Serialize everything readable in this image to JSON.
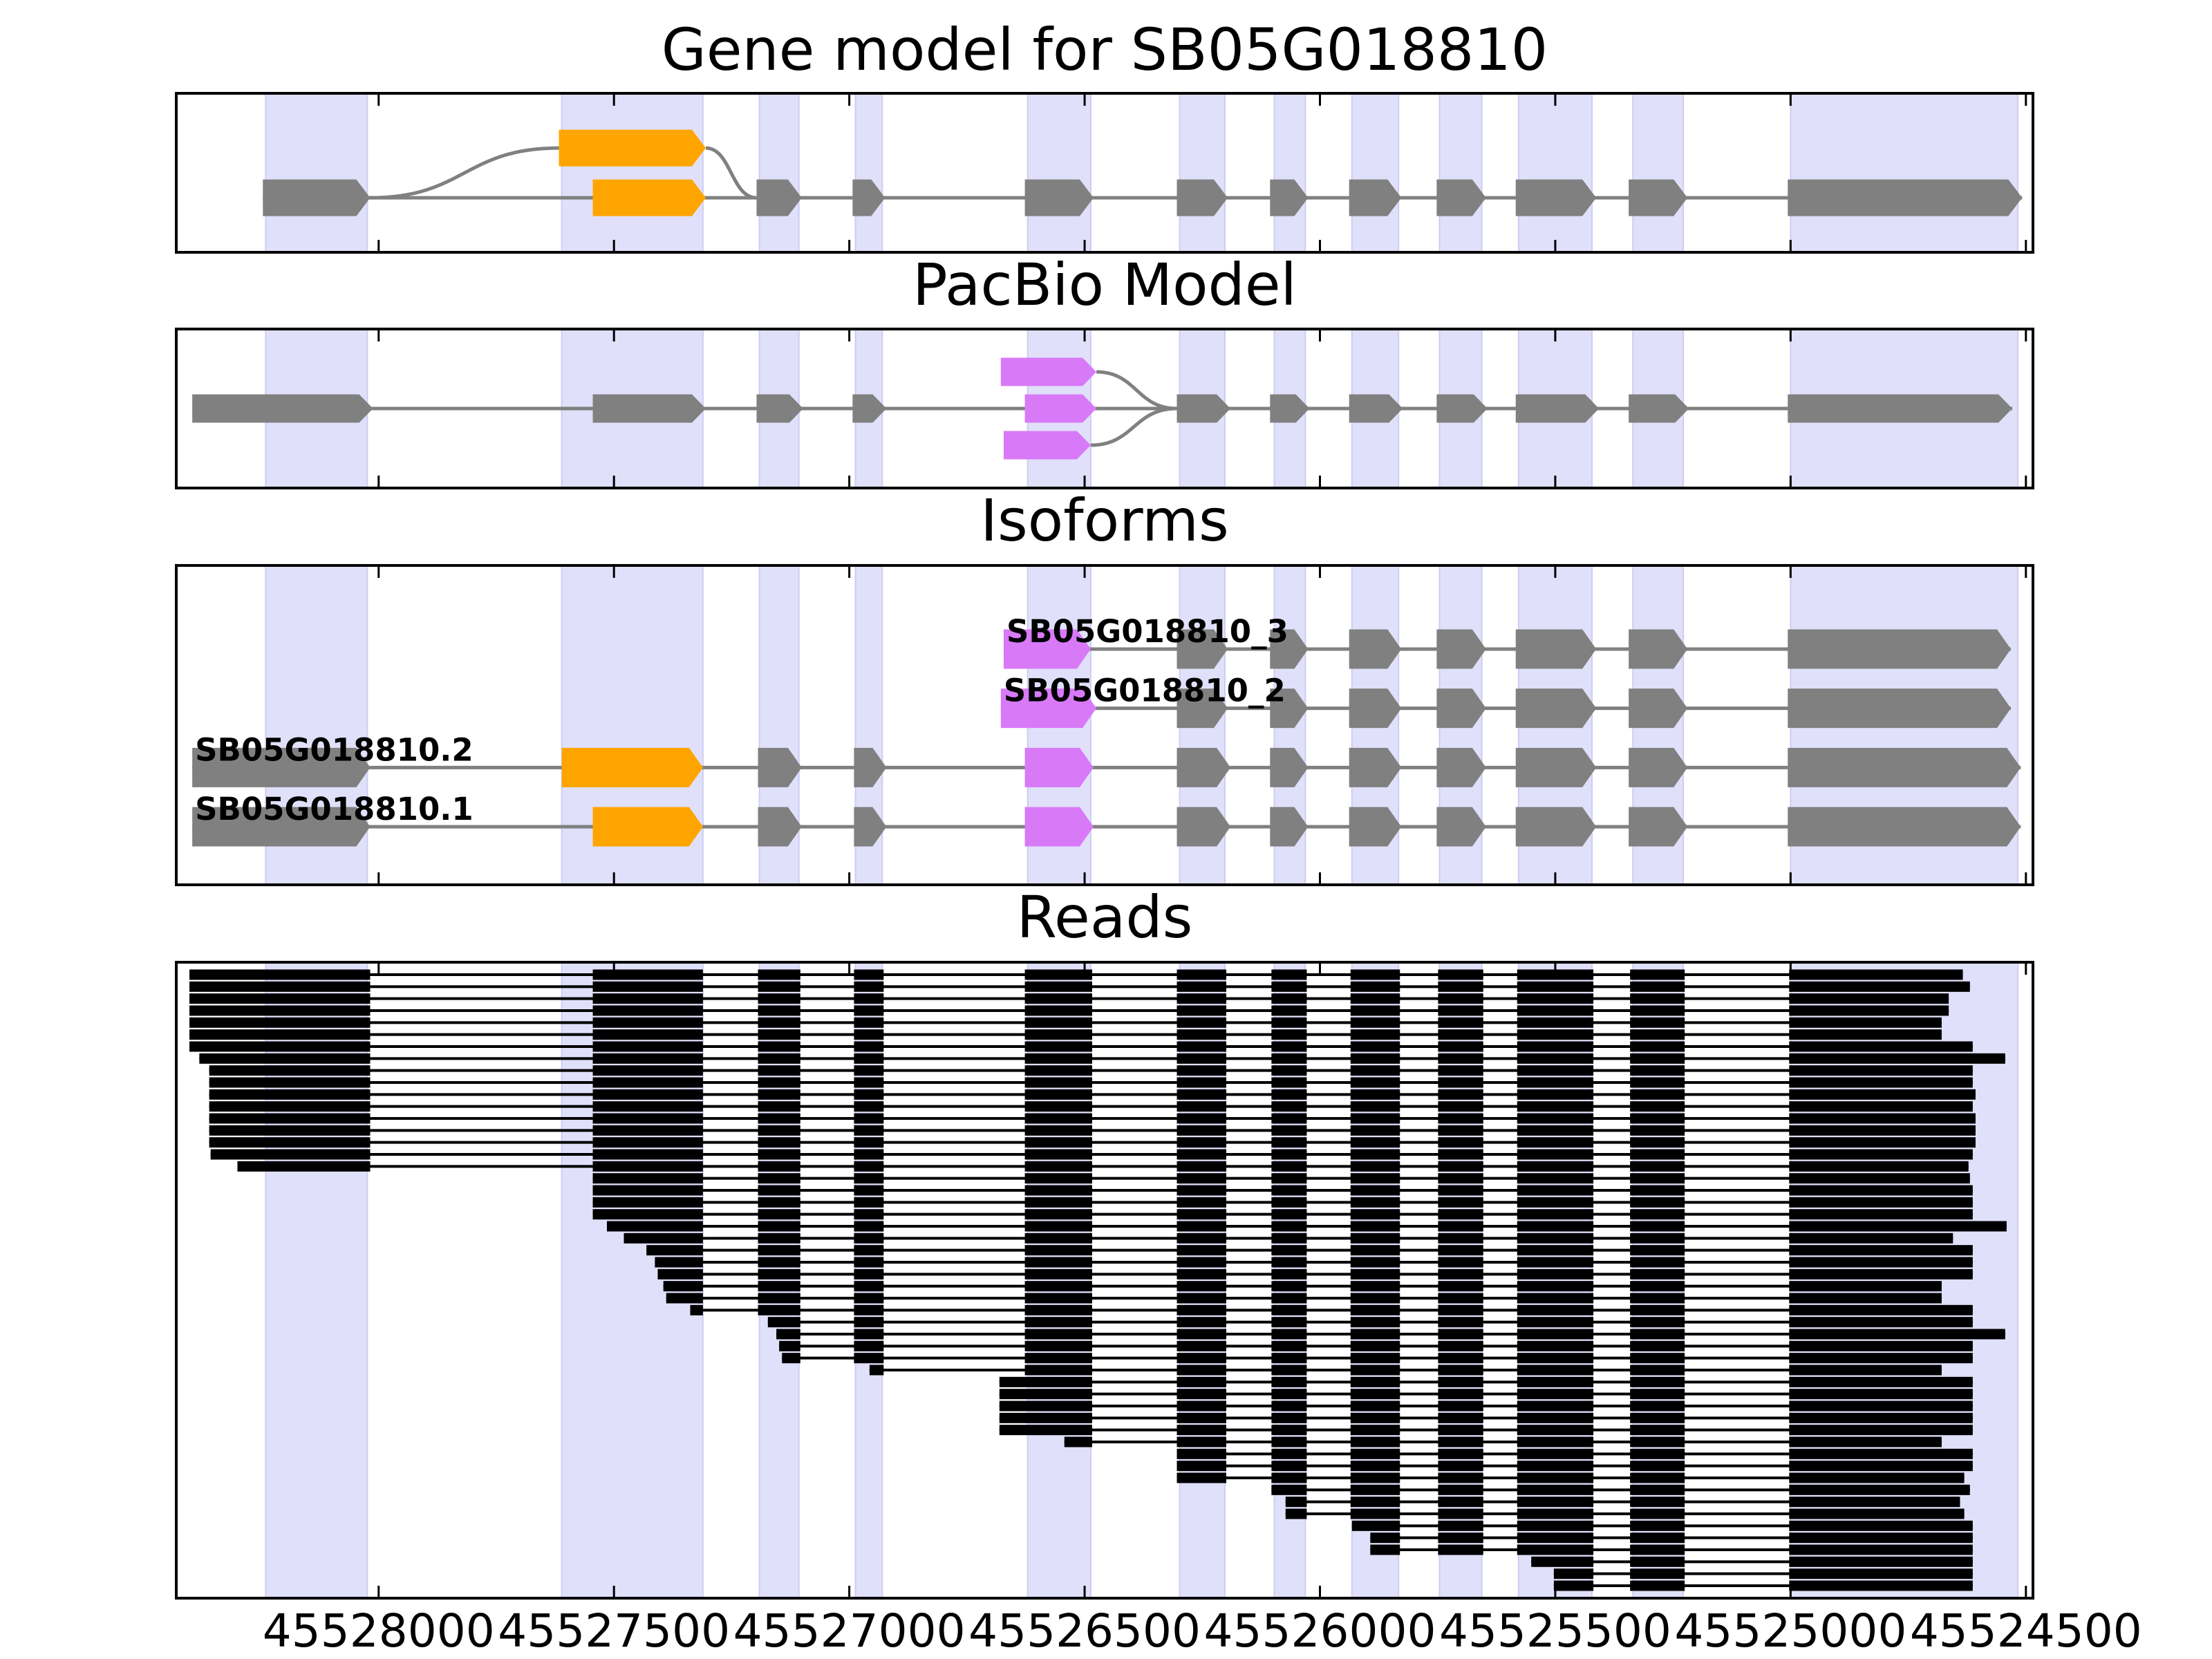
{
  "chart_data": [
    {
      "type": "transcript",
      "title": "Gene model for SB05G018810",
      "xlim": [
        45528430,
        45524485
      ],
      "xticks": [
        45528000,
        45527500,
        45527000,
        45526500,
        45526000,
        45525500,
        45525000,
        45524500
      ],
      "region_color": "#e0e0fa",
      "exon_regions": [
        [
          45528240,
          45528024
        ],
        [
          45527611,
          45527311
        ],
        [
          45527191,
          45527107
        ],
        [
          45526987,
          45526930
        ],
        [
          45526621,
          45526487
        ],
        [
          45526298,
          45526202
        ],
        [
          45526097,
          45526031
        ],
        [
          45525932,
          45525833
        ],
        [
          45525746,
          45525656
        ],
        [
          45525578,
          45525422
        ],
        [
          45525335,
          45525228
        ],
        [
          45525000,
          45524517
        ]
      ],
      "intron_color": "#808080",
      "exons": [
        [
          45528246,
          45528018
        ],
        [
          45527545,
          45527305
        ],
        [
          45527197,
          45527101
        ],
        [
          45526993,
          45526924
        ],
        [
          45526627,
          45526481
        ],
        [
          45526304,
          45526196
        ],
        [
          45526106,
          45526025
        ],
        [
          45525938,
          45525827
        ],
        [
          45525752,
          45525647
        ],
        [
          45525584,
          45525413
        ],
        [
          45525344,
          45525219
        ],
        [
          45525006,
          45524508
        ]
      ],
      "exon_colors": [
        "#808080",
        "#ffa500",
        "#808080",
        "#808080",
        "#808080",
        "#808080",
        "#808080",
        "#808080",
        "#808080",
        "#808080",
        "#808080",
        "#808080"
      ],
      "alternatives": [
        {
          "exon": [
            45527617,
            45527305
          ],
          "color": "#ffa500",
          "joins_previous": true
        }
      ]
    },
    {
      "type": "transcript",
      "title": "PacBio Model",
      "xlim": [
        45528430,
        45524485
      ],
      "xticks": [
        45528000,
        45527500,
        45527000,
        45526500,
        45526000,
        45525500,
        45525000,
        45524500
      ],
      "region_color": "#e0e0fa",
      "exon_regions": [
        [
          45528240,
          45528024
        ],
        [
          45527611,
          45527311
        ],
        [
          45527191,
          45527107
        ],
        [
          45526987,
          45526930
        ],
        [
          45526621,
          45526487
        ],
        [
          45526298,
          45526202
        ],
        [
          45526097,
          45526031
        ],
        [
          45525932,
          45525833
        ],
        [
          45525746,
          45525656
        ],
        [
          45525578,
          45525422
        ],
        [
          45525335,
          45525228
        ],
        [
          45525000,
          45524517
        ]
      ],
      "intron_color": "#808080",
      "exons": [
        [
          45528396,
          45528012
        ],
        [
          45527545,
          45527305
        ],
        [
          45527197,
          45527098
        ],
        [
          45526993,
          45526921
        ],
        [
          45526627,
          45526475
        ],
        [
          45526304,
          45526190
        ],
        [
          45526106,
          45526022
        ],
        [
          45525938,
          45525824
        ],
        [
          45525752,
          45525644
        ],
        [
          45525584,
          45525407
        ],
        [
          45525344,
          45525216
        ],
        [
          45525006,
          45524529
        ]
      ],
      "exon_colors": [
        "#808080",
        "#808080",
        "#808080",
        "#808080",
        "#d87af8",
        "#808080",
        "#808080",
        "#808080",
        "#808080",
        "#808080",
        "#808080",
        "#808080"
      ],
      "alternatives": [
        {
          "exon": [
            45526678,
            45526475
          ],
          "color": "#d87af8",
          "joins_previous": false
        },
        {
          "exon": [
            45526672,
            45526487
          ],
          "color": "#d87af8",
          "joins_previous": false
        }
      ]
    },
    {
      "type": "isoforms",
      "title": "Isoforms",
      "xlim": [
        45528430,
        45524485
      ],
      "xticks": [
        45528000,
        45527500,
        45527000,
        45526500,
        45526000,
        45525500,
        45525000,
        45524500
      ],
      "region_color": "#e0e0fa",
      "exon_regions": [
        [
          45528240,
          45528024
        ],
        [
          45527611,
          45527311
        ],
        [
          45527191,
          45527107
        ],
        [
          45526987,
          45526930
        ],
        [
          45526621,
          45526487
        ],
        [
          45526298,
          45526202
        ],
        [
          45526097,
          45526031
        ],
        [
          45525932,
          45525833
        ],
        [
          45525746,
          45525656
        ],
        [
          45525578,
          45525422
        ],
        [
          45525335,
          45525228
        ],
        [
          45525000,
          45524517
        ]
      ],
      "intron_color": "#808080",
      "isoforms": [
        {
          "name": "SB05G018810_3",
          "exons": [
            [
              45526672,
              45526487
            ],
            [
              45526304,
              45526196
            ],
            [
              45526106,
              45526025
            ],
            [
              45525938,
              45525827
            ],
            [
              45525752,
              45525647
            ],
            [
              45525584,
              45525413
            ],
            [
              45525344,
              45525219
            ],
            [
              45525006,
              45524532
            ]
          ],
          "exon_colors": [
            "#d87af8",
            "#808080",
            "#808080",
            "#808080",
            "#808080",
            "#808080",
            "#808080",
            "#808080"
          ]
        },
        {
          "name": "SB05G018810_2",
          "exons": [
            [
              45526678,
              45526475
            ],
            [
              45526304,
              45526196
            ],
            [
              45526106,
              45526025
            ],
            [
              45525938,
              45525827
            ],
            [
              45525752,
              45525647
            ],
            [
              45525584,
              45525413
            ],
            [
              45525344,
              45525219
            ],
            [
              45525006,
              45524532
            ]
          ],
          "exon_colors": [
            "#d87af8",
            "#808080",
            "#808080",
            "#808080",
            "#808080",
            "#808080",
            "#808080",
            "#808080"
          ]
        },
        {
          "name": "SB05G018810.2",
          "exons": [
            [
              45528396,
              45528018
            ],
            [
              45527611,
              45527311
            ],
            [
              45527194,
              45527101
            ],
            [
              45526990,
              45526921
            ],
            [
              45526627,
              45526481
            ],
            [
              45526304,
              45526190
            ],
            [
              45526106,
              45526025
            ],
            [
              45525938,
              45525827
            ],
            [
              45525752,
              45525647
            ],
            [
              45525584,
              45525413
            ],
            [
              45525344,
              45525219
            ],
            [
              45525006,
              45524511
            ]
          ],
          "exon_colors": [
            "#808080",
            "#ffa500",
            "#808080",
            "#808080",
            "#d87af8",
            "#808080",
            "#808080",
            "#808080",
            "#808080",
            "#808080",
            "#808080",
            "#808080"
          ]
        },
        {
          "name": "SB05G018810.1",
          "exons": [
            [
              45528396,
              45528018
            ],
            [
              45527545,
              45527311
            ],
            [
              45527194,
              45527101
            ],
            [
              45526990,
              45526921
            ],
            [
              45526627,
              45526481
            ],
            [
              45526304,
              45526190
            ],
            [
              45526106,
              45526025
            ],
            [
              45525938,
              45525827
            ],
            [
              45525752,
              45525647
            ],
            [
              45525584,
              45525413
            ],
            [
              45525344,
              45525219
            ],
            [
              45525006,
              45524511
            ]
          ],
          "exon_colors": [
            "#808080",
            "#ffa500",
            "#808080",
            "#808080",
            "#d87af8",
            "#808080",
            "#808080",
            "#808080",
            "#808080",
            "#808080",
            "#808080",
            "#808080"
          ]
        }
      ]
    },
    {
      "type": "reads",
      "title": "Reads",
      "xlim": [
        45528430,
        45524485
      ],
      "xticks": [
        45528000,
        45527500,
        45527000,
        45526500,
        45526000,
        45525500,
        45525000,
        45524500
      ],
      "region_color": "#e0e0fa",
      "exon_regions": [
        [
          45528240,
          45528024
        ],
        [
          45527611,
          45527311
        ],
        [
          45527191,
          45527107
        ],
        [
          45526987,
          45526930
        ],
        [
          45526621,
          45526487
        ],
        [
          45526298,
          45526202
        ],
        [
          45526097,
          45526031
        ],
        [
          45525932,
          45525833
        ],
        [
          45525746,
          45525656
        ],
        [
          45525578,
          45525422
        ],
        [
          45525335,
          45525228
        ],
        [
          45525000,
          45524517
        ]
      ],
      "color": "#000000",
      "read_exons": [
        [
          45528402,
          45528018
        ],
        [
          45527545,
          45527311
        ],
        [
          45527194,
          45527104
        ],
        [
          45526990,
          45526927
        ],
        [
          45526627,
          45526484
        ],
        [
          45526304,
          45526199
        ],
        [
          45526103,
          45526028
        ],
        [
          45525935,
          45525830
        ],
        [
          45525749,
          45525653
        ],
        [
          45525581,
          45525419
        ],
        [
          45525341,
          45525225
        ],
        [
          45525003,
          45524535
        ]
      ],
      "reads": [
        [
          45528402,
          45524634
        ],
        [
          45528402,
          45524619
        ],
        [
          45528402,
          45524664
        ],
        [
          45528402,
          45524664
        ],
        [
          45528402,
          45524679
        ],
        [
          45528402,
          45524679
        ],
        [
          45528402,
          45524613
        ],
        [
          45528381,
          45524544
        ],
        [
          45528360,
          45524613
        ],
        [
          45528360,
          45524613
        ],
        [
          45528360,
          45524607
        ],
        [
          45528360,
          45524613
        ],
        [
          45528360,
          45524607
        ],
        [
          45528360,
          45524607
        ],
        [
          45528360,
          45524607
        ],
        [
          45528357,
          45524613
        ],
        [
          45528300,
          45524622
        ],
        [
          45527545,
          45524619
        ],
        [
          45527545,
          45524613
        ],
        [
          45527545,
          45524613
        ],
        [
          45527545,
          45524613
        ],
        [
          45527515,
          45524541
        ],
        [
          45527479,
          45524655
        ],
        [
          45527431,
          45524613
        ],
        [
          45527413,
          45524613
        ],
        [
          45527407,
          45524613
        ],
        [
          45527395,
          45524679
        ],
        [
          45527389,
          45524679
        ],
        [
          45527338,
          45524613
        ],
        [
          45527173,
          45524613
        ],
        [
          45527155,
          45524544
        ],
        [
          45527149,
          45524613
        ],
        [
          45527143,
          45524613
        ],
        [
          45526957,
          45524679
        ],
        [
          45526681,
          45524613
        ],
        [
          45526681,
          45524613
        ],
        [
          45526681,
          45524613
        ],
        [
          45526681,
          45524613
        ],
        [
          45526681,
          45524613
        ],
        [
          45526543,
          45524679
        ],
        [
          45526304,
          45524613
        ],
        [
          45526304,
          45524613
        ],
        [
          45526304,
          45524631
        ],
        [
          45526103,
          45524619
        ],
        [
          45526073,
          45524640
        ],
        [
          45526073,
          45524631
        ],
        [
          45525932,
          45524613
        ],
        [
          45525893,
          45524613
        ],
        [
          45525893,
          45524613
        ],
        [
          45525551,
          45524613
        ],
        [
          45525503,
          45524613
        ],
        [
          45525503,
          45524613
        ]
      ]
    }
  ]
}
